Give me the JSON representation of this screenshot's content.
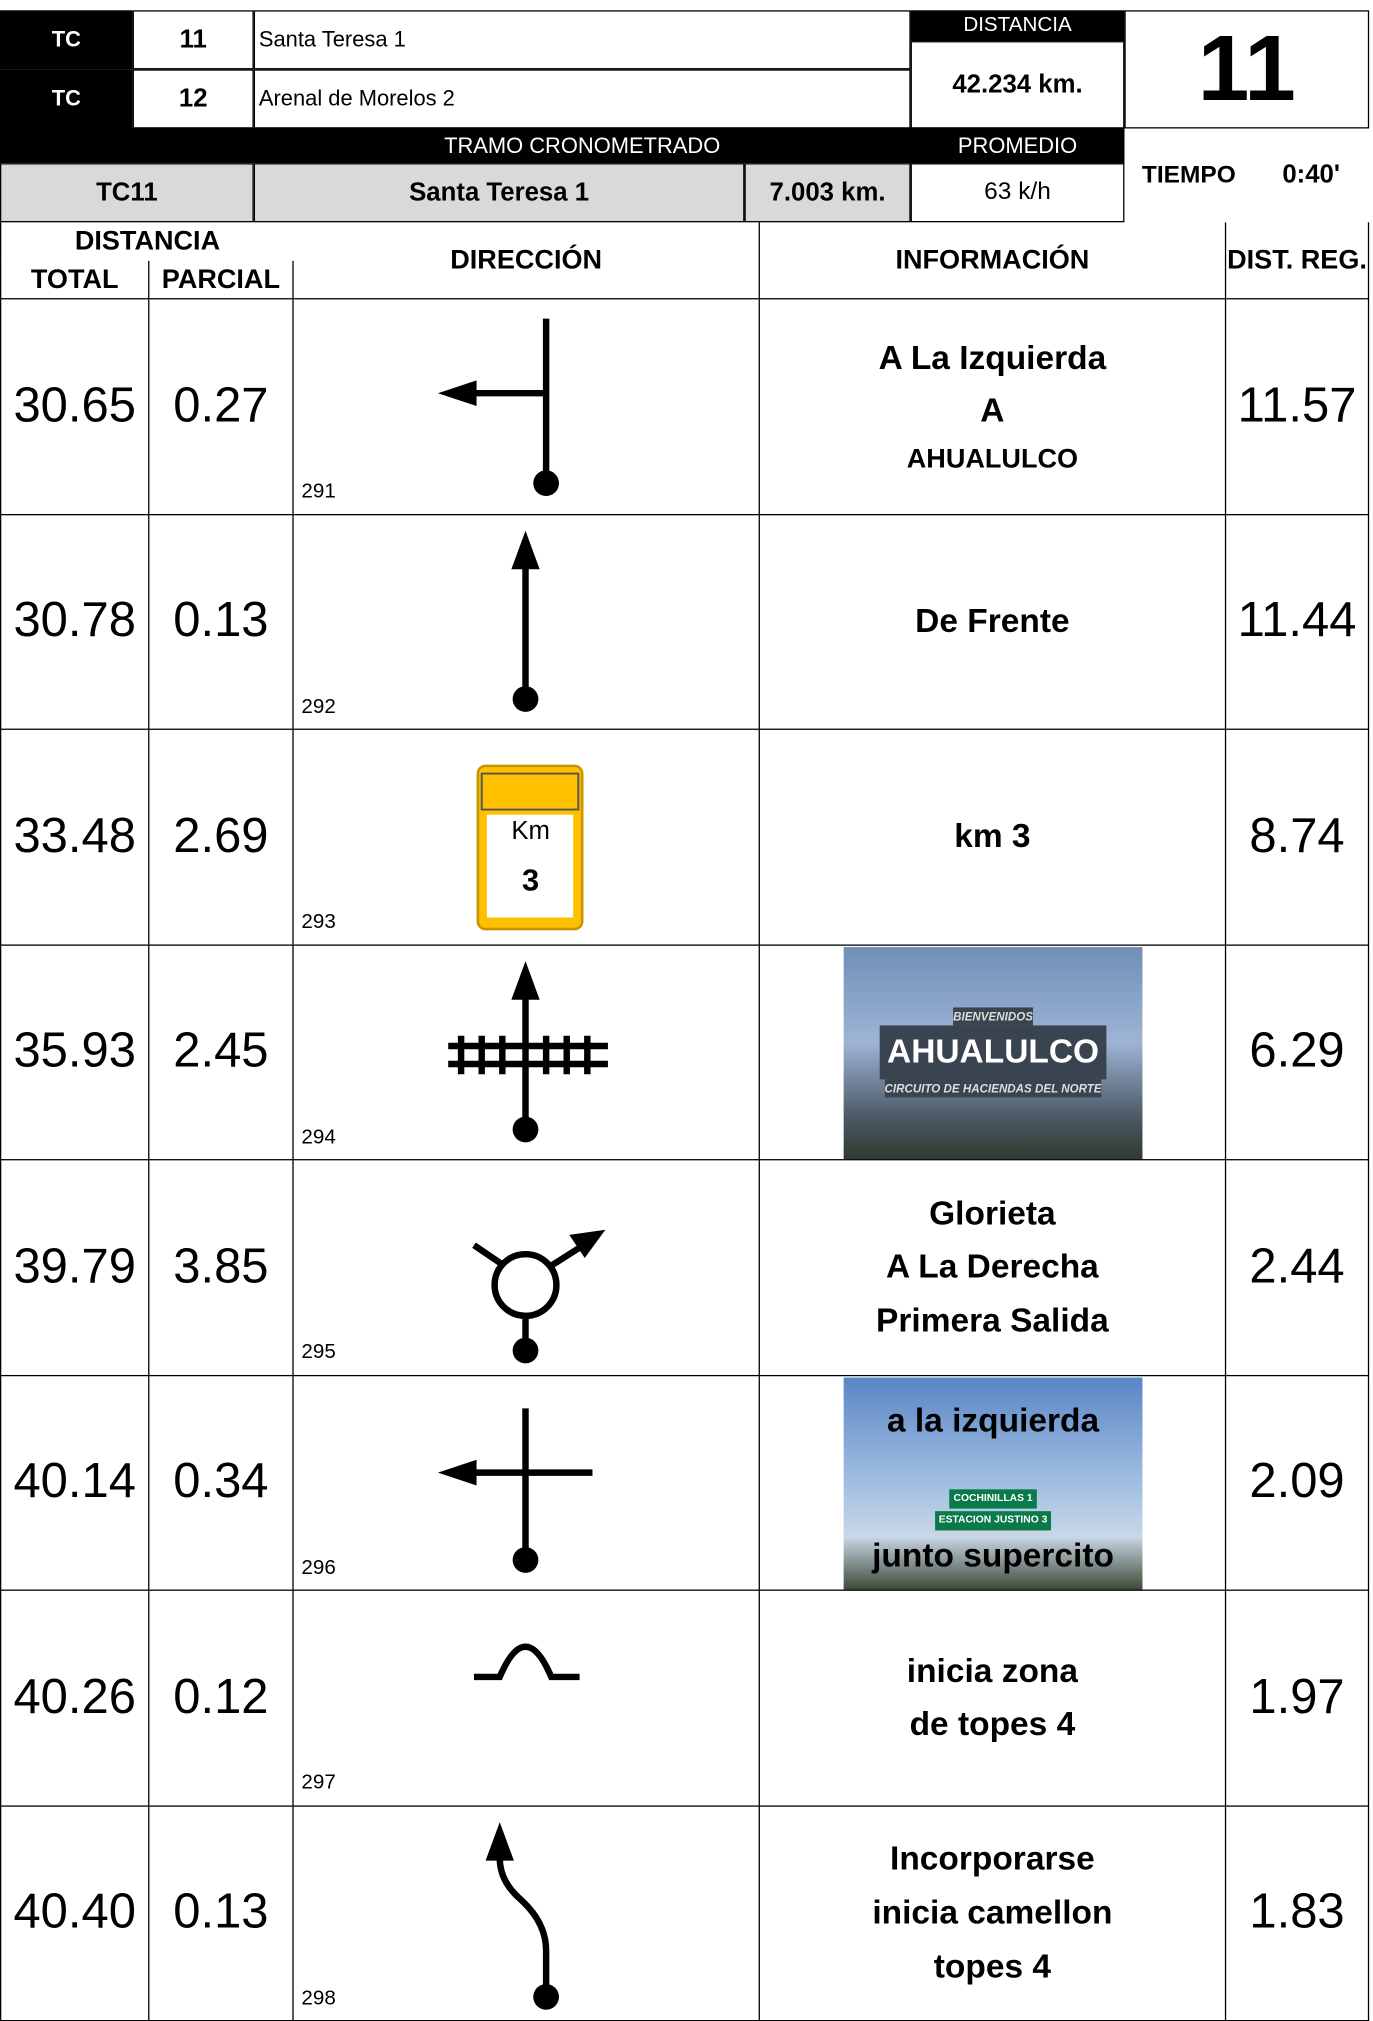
{
  "header": {
    "rows": [
      {
        "label": "TC",
        "number": "11",
        "name": "Santa Teresa 1"
      },
      {
        "label": "TC",
        "number": "12",
        "name": "Arenal de Morelos 2"
      }
    ],
    "distancia_label": "DISTANCIA",
    "distancia": "42.234 km.",
    "big_number": "11",
    "tramo_label": "TRAMO CRONOMETRADO",
    "promedio_label": "PROMEDIO",
    "stage": {
      "code": "TC11",
      "name": "Santa Teresa 1",
      "distance": "7.003 km.",
      "promedio": "63 k/h",
      "tiempo_label": "TIEMPO",
      "tiempo": "0:40'"
    }
  },
  "table": {
    "columns": {
      "distancia": "DISTANCIA",
      "total": "TOTAL",
      "parcial": "PARCIAL",
      "direccion": "DIRECCIÓN",
      "informacion": "INFORMACIÓN",
      "dist_reg": "DIST. REG."
    },
    "rows": [
      {
        "total": "30.65",
        "parcial": "0.27",
        "number": "291",
        "info": [
          "A La Izquierda",
          "A",
          "AHUALULCO"
        ],
        "dist_reg": "11.57"
      },
      {
        "total": "30.78",
        "parcial": "0.13",
        "number": "292",
        "info": [
          "De Frente"
        ],
        "dist_reg": "11.44"
      },
      {
        "total": "33.48",
        "parcial": "2.69",
        "number": "293",
        "sign": [
          "Km",
          "3"
        ],
        "info": [
          "km 3"
        ],
        "dist_reg": "8.74"
      },
      {
        "total": "35.93",
        "parcial": "2.45",
        "number": "294",
        "info": [],
        "photo_text": [
          "BIENVENIDOS",
          "AHUALULCO",
          "CIRCUITO DE HACIENDAS DEL NORTE"
        ],
        "dist_reg": "6.29"
      },
      {
        "total": "39.79",
        "parcial": "3.85",
        "number": "295",
        "info": [
          "Glorieta",
          "A La Derecha",
          "Primera Salida"
        ],
        "dist_reg": "2.44"
      },
      {
        "total": "40.14",
        "parcial": "0.34",
        "number": "296",
        "info": [
          "a la izquierda",
          "junto supercito"
        ],
        "photo_text": [
          "COCHINILLAS 1",
          "ESTACION JUSTINO 3"
        ],
        "dist_reg": "2.09"
      },
      {
        "total": "40.26",
        "parcial": "0.12",
        "number": "297",
        "info": [
          "inicia zona",
          "de topes 4"
        ],
        "dist_reg": "1.97"
      },
      {
        "total": "40.40",
        "parcial": "0.13",
        "number": "298",
        "info": [
          "Incorporarse",
          "inicia camellon",
          "topes 4"
        ],
        "dist_reg": "1.83"
      }
    ]
  }
}
